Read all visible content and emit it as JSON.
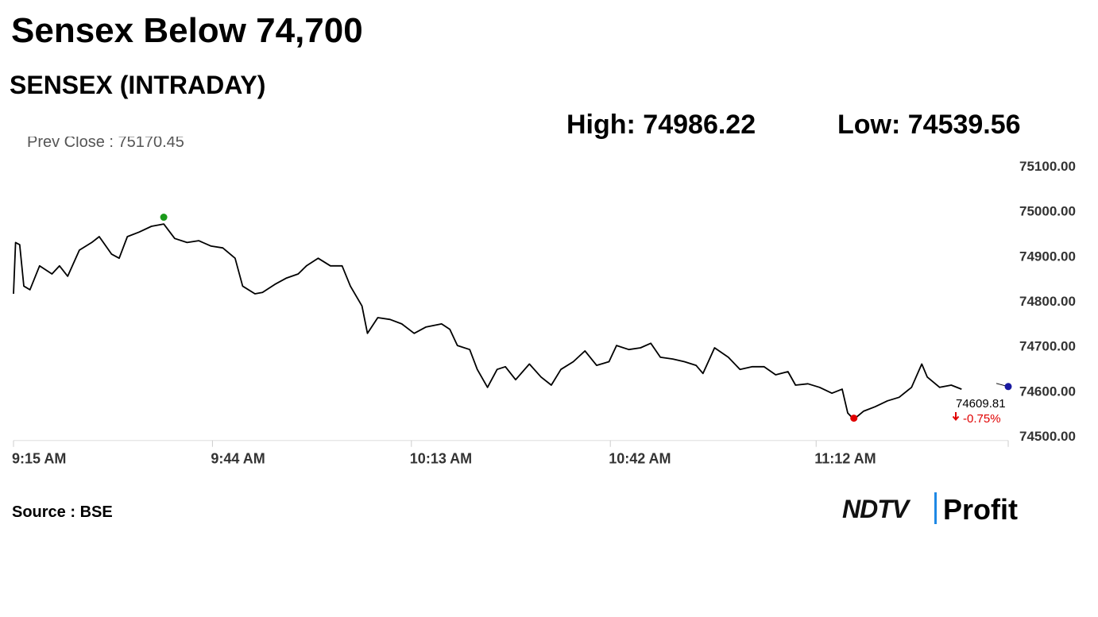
{
  "chart_data": {
    "type": "line",
    "title": "Sensex Below 74,700",
    "subtitle": "SENSEX (INTRADAY)",
    "high": {
      "value": 74986.22,
      "label": "High: 74986.22"
    },
    "low": {
      "value": 74539.56,
      "label": "Low: 74539.56"
    },
    "prev_close": {
      "value": 75170.45,
      "label": "Prev Close : 75170.45"
    },
    "last": {
      "value": 74609.81,
      "label": "74609.81"
    },
    "change": {
      "value": -0.75,
      "label": "-0.75%"
    },
    "source": "Source : BSE",
    "logo": [
      "NDTV",
      "Profit"
    ],
    "xlim": [
      555,
      700
    ],
    "xticks": [
      {
        "value": 555,
        "label": "9:15 AM"
      },
      {
        "value": 584,
        "label": "9:44 AM"
      },
      {
        "value": 613,
        "label": "10:13 AM"
      },
      {
        "value": 642,
        "label": "10:42 AM"
      },
      {
        "value": 672,
        "label": "11:12 AM"
      }
    ],
    "ylim": [
      74490,
      75150
    ],
    "yticks": [
      {
        "value": 74500,
        "label": "74500.00"
      },
      {
        "value": 74600,
        "label": "74600.00"
      },
      {
        "value": 74700,
        "label": "74700.00"
      },
      {
        "value": 74800,
        "label": "74800.00"
      },
      {
        "value": 74900,
        "label": "74900.00"
      },
      {
        "value": 75000,
        "label": "75000.00"
      },
      {
        "value": 75100,
        "label": "75100.00"
      }
    ],
    "grid": false,
    "series": [
      {
        "name": "SENSEX",
        "color": "#000000",
        "x": [
          555.0,
          555.3,
          555.9,
          556.5,
          557.4,
          558.8,
          560.6,
          561.7,
          562.9,
          564.6,
          566.4,
          567.5,
          569.3,
          570.4,
          571.6,
          573.3,
          575.1,
          576.9,
          578.5,
          580.3,
          582.0,
          583.8,
          585.5,
          587.3,
          588.4,
          590.2,
          591.3,
          593.1,
          594.8,
          596.5,
          597.7,
          599.4,
          601.2,
          602.9,
          604.1,
          605.8,
          606.6,
          608.1,
          609.9,
          611.6,
          613.4,
          615.1,
          617.4,
          618.6,
          619.7,
          621.5,
          622.6,
          624.1,
          625.5,
          626.7,
          628.2,
          630.2,
          631.9,
          633.4,
          634.8,
          636.6,
          638.3,
          640.0,
          641.8,
          642.9,
          644.7,
          646.4,
          647.9,
          649.3,
          651.1,
          652.8,
          654.5,
          655.5,
          657.2,
          659.2,
          660.9,
          662.7,
          664.4,
          666.1,
          667.9,
          669.0,
          670.8,
          672.5,
          674.3,
          675.8,
          676.6,
          677.5,
          678.9,
          680.6,
          682.4,
          684.1,
          685.9,
          687.4,
          688.2,
          690.0,
          691.7,
          693.2
        ],
        "values": [
          74816,
          74930,
          74925,
          74833,
          74825,
          74878,
          74860,
          74878,
          74855,
          74913,
          74930,
          74943,
          74904,
          74895,
          74943,
          74953,
          74966,
          74971,
          74939,
          74930,
          74934,
          74922,
          74918,
          74895,
          74833,
          74816,
          74819,
          74837,
          74851,
          74860,
          74878,
          74895,
          74878,
          74878,
          74833,
          74789,
          74728,
          74763,
          74759,
          74749,
          74728,
          74742,
          74749,
          74737,
          74701,
          74692,
          74648,
          74608,
          74648,
          74654,
          74625,
          74660,
          74631,
          74613,
          74648,
          74665,
          74689,
          74657,
          74665,
          74701,
          74692,
          74696,
          74706,
          74675,
          74671,
          74665,
          74657,
          74639,
          74696,
          74675,
          74648,
          74654,
          74654,
          74636,
          74643,
          74613,
          74616,
          74608,
          74595,
          74604,
          74551,
          74537,
          74555,
          74565,
          74578,
          74586,
          74608,
          74660,
          74631,
          74608,
          74613,
          74604
        ]
      }
    ]
  }
}
